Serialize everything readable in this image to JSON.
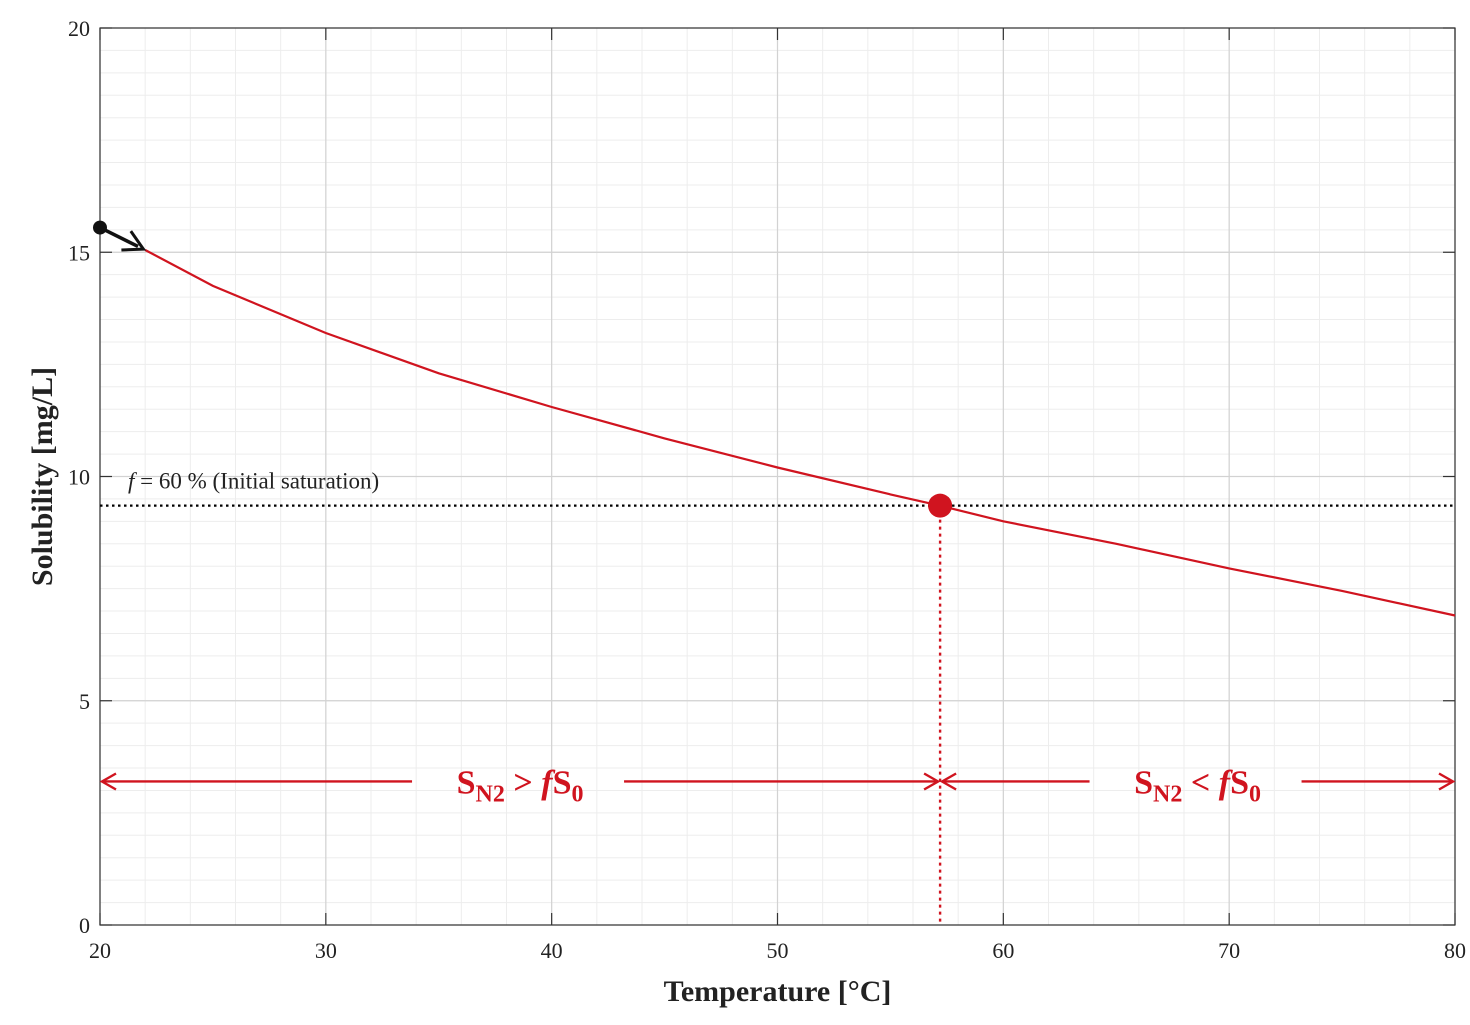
{
  "chart_data": {
    "type": "line",
    "xlabel": "Temperature [°C]",
    "ylabel": "Solubility [mg/L]",
    "xlim": [
      20,
      80
    ],
    "ylim": [
      0,
      20
    ],
    "x_ticks": [
      20,
      30,
      40,
      50,
      60,
      70,
      80
    ],
    "y_ticks": [
      0,
      5,
      10,
      15,
      20
    ],
    "grid": true,
    "minor_grid": true,
    "colors": {
      "curve": "#d0141f",
      "annotation": "#d0141f",
      "reference": "#000000"
    },
    "series": [
      {
        "x": [
          22,
          25,
          30,
          35,
          40,
          45,
          50,
          55,
          57.2,
          60,
          65,
          70,
          75,
          80
        ],
        "values": [
          15.05,
          14.25,
          13.2,
          12.3,
          11.55,
          10.85,
          10.2,
          9.6,
          9.35,
          9.0,
          8.5,
          7.95,
          7.45,
          6.9
        ]
      }
    ],
    "initial_point": {
      "x": 20,
      "y": 15.55
    },
    "reference_line": {
      "y": 9.35,
      "label_symbol": "f",
      "label_text": " = 60 % (Initial saturation)"
    },
    "intersection": {
      "x": 57.2,
      "y": 9.35
    },
    "regions": {
      "y": 3.2,
      "left": {
        "main": "S",
        "sub": "N2",
        "op": " > ",
        "f": "f",
        "s": "S",
        "s_sub": "0"
      },
      "right": {
        "main": "S",
        "sub": "N2",
        "op": " < ",
        "f": "f",
        "s": "S",
        "s_sub": "0"
      }
    }
  }
}
